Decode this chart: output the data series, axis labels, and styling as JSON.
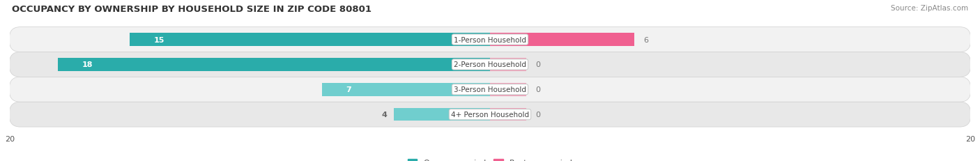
{
  "title": "OCCUPANCY BY OWNERSHIP BY HOUSEHOLD SIZE IN ZIP CODE 80801",
  "source": "Source: ZipAtlas.com",
  "categories": [
    "1-Person Household",
    "2-Person Household",
    "3-Person Household",
    "4+ Person Household"
  ],
  "owner_values": [
    15,
    18,
    7,
    4
  ],
  "renter_values": [
    6,
    0,
    0,
    0
  ],
  "owner_color_dark": "#2aacaa",
  "owner_color_light": "#70cece",
  "renter_color_dark": "#f06090",
  "renter_color_light": "#f0a0b8",
  "axis_max": 20,
  "row_bg_color_odd": "#f2f2f2",
  "row_bg_color_even": "#e8e8e8",
  "label_bg_color": "#ffffff",
  "title_fontsize": 9.5,
  "source_fontsize": 7.5,
  "value_fontsize": 8,
  "cat_fontsize": 7.5,
  "tick_fontsize": 8,
  "legend_fontsize": 8
}
